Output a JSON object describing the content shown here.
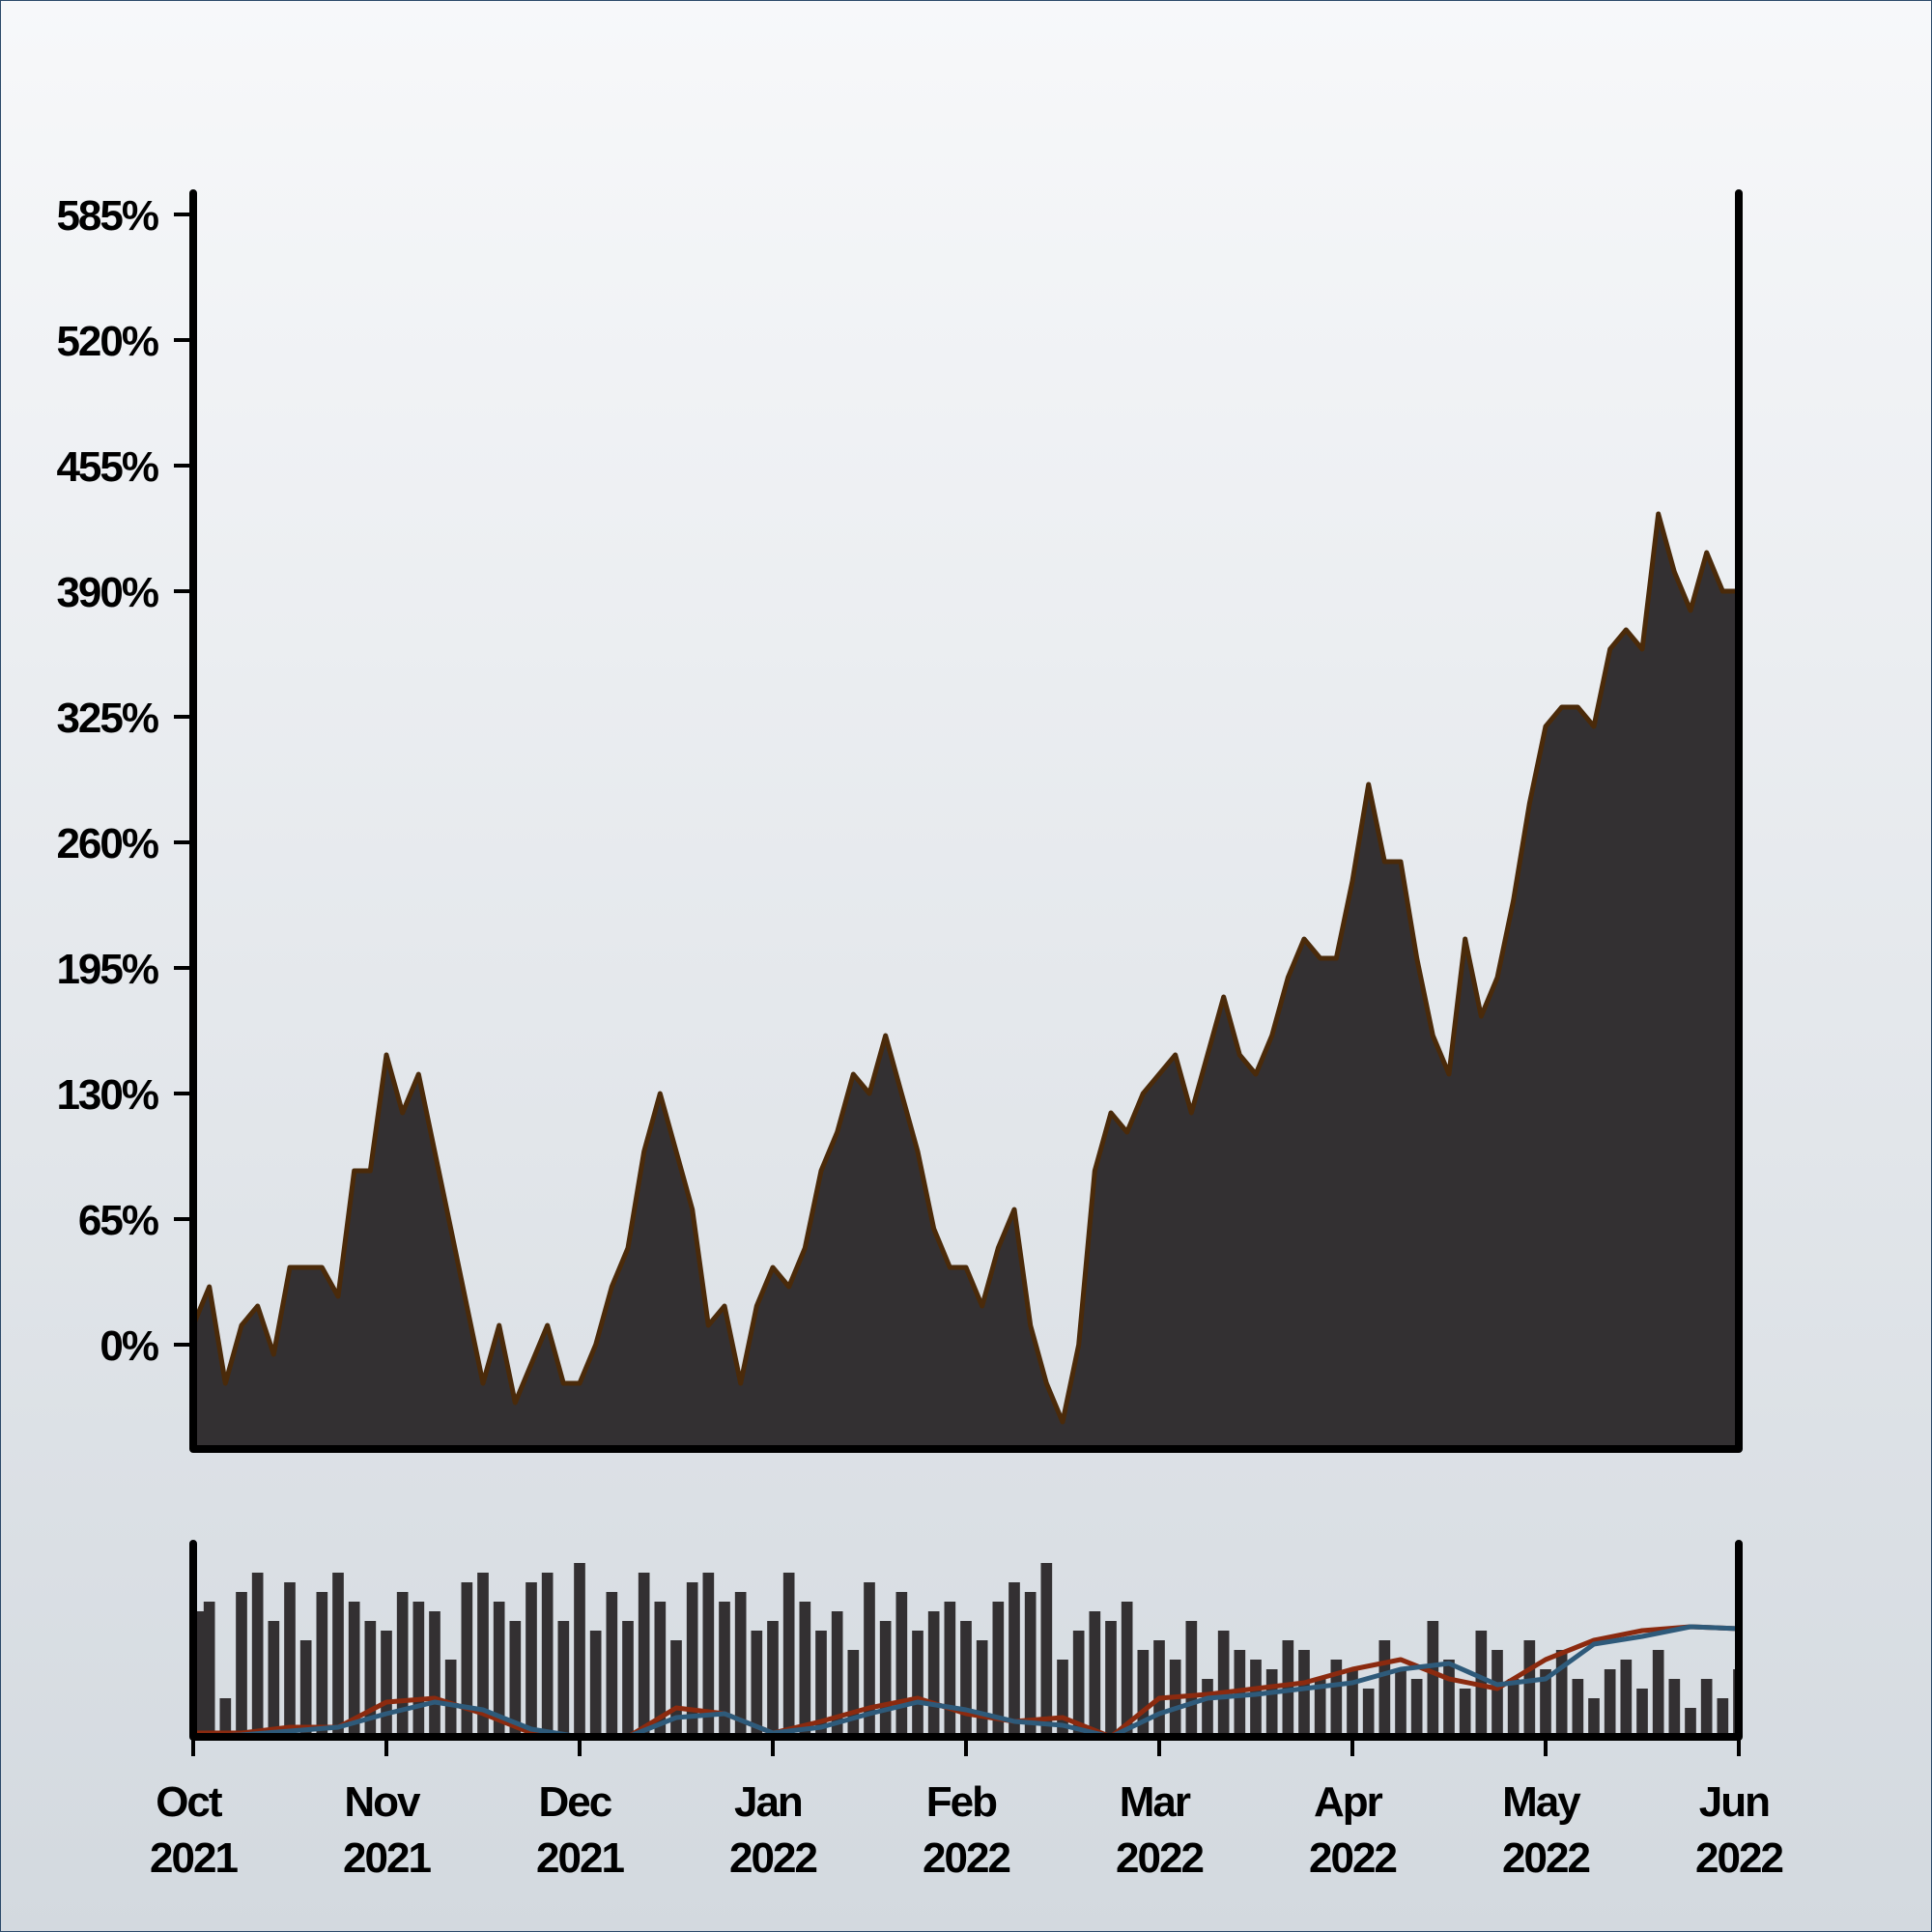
{
  "chart_data": [
    {
      "type": "area",
      "color": "#333032",
      "line_color": "#4a2a0a",
      "xlim": [
        0,
        8
      ],
      "ylim": [
        -54,
        596
      ],
      "yticks": [
        {
          "value": 0,
          "label": "0%"
        },
        {
          "value": 65,
          "label": "65%"
        },
        {
          "value": 130,
          "label": "130%"
        },
        {
          "value": 195,
          "label": "195%"
        },
        {
          "value": 260,
          "label": "260%"
        },
        {
          "value": 325,
          "label": "325%"
        },
        {
          "value": 390,
          "label": "390%"
        },
        {
          "value": 455,
          "label": "455%"
        },
        {
          "value": 520,
          "label": "520%"
        },
        {
          "value": 585,
          "label": "585%"
        }
      ],
      "values": [
        10,
        30,
        -20,
        10,
        20,
        -5,
        40,
        40,
        40,
        25,
        90,
        90,
        150,
        120,
        140,
        100,
        60,
        20,
        -20,
        10,
        -30,
        -10,
        10,
        -20,
        -20,
        0,
        30,
        50,
        100,
        130,
        100,
        70,
        10,
        20,
        -20,
        20,
        40,
        30,
        50,
        90,
        110,
        140,
        130,
        160,
        130,
        100,
        60,
        40,
        40,
        20,
        50,
        70,
        10,
        -20,
        -40,
        0,
        90,
        120,
        110,
        130,
        140,
        150,
        120,
        150,
        180,
        150,
        140,
        160,
        190,
        210,
        200,
        200,
        240,
        290,
        250,
        250,
        200,
        160,
        140,
        210,
        170,
        190,
        230,
        280,
        320,
        330,
        330,
        320,
        360,
        370,
        360,
        430,
        400,
        380,
        410,
        390,
        390
      ]
    },
    {
      "type": "bar",
      "color": "#333032",
      "xlim": [
        0,
        8
      ],
      "ylim": [
        0,
        100
      ],
      "xticks": [
        {
          "value": 0,
          "label": "Oct 2021"
        },
        {
          "value": 1,
          "label": "Nov 2021"
        },
        {
          "value": 2,
          "label": "Dec 2021"
        },
        {
          "value": 3,
          "label": "Jan 2022"
        },
        {
          "value": 4,
          "label": "Feb 2022"
        },
        {
          "value": 5,
          "label": "Mar 2022"
        },
        {
          "value": 6,
          "label": "Apr 2022"
        },
        {
          "value": 7,
          "label": "May 2022"
        },
        {
          "value": 8,
          "label": "Jun 2022"
        }
      ],
      "values": [
        65,
        70,
        20,
        75,
        85,
        60,
        80,
        50,
        75,
        85,
        70,
        60,
        55,
        75,
        70,
        65,
        40,
        80,
        85,
        70,
        60,
        80,
        85,
        60,
        90,
        55,
        75,
        60,
        85,
        70,
        50,
        80,
        85,
        70,
        75,
        55,
        60,
        85,
        70,
        55,
        65,
        45,
        80,
        60,
        75,
        55,
        65,
        70,
        60,
        50,
        70,
        80,
        75,
        90,
        40,
        55,
        65,
        60,
        70,
        45,
        50,
        40,
        60,
        30,
        55,
        45,
        40,
        35,
        50,
        45,
        30,
        40,
        35,
        25,
        50,
        35,
        30,
        60,
        40,
        25,
        55,
        45,
        30,
        50,
        35,
        45,
        30,
        20,
        35,
        40,
        25,
        45,
        30,
        15,
        30,
        20,
        35
      ],
      "series": [
        {
          "color": "#8b2a0f",
          "values": [
            2,
            2,
            5,
            5,
            18,
            20,
            12,
            2,
            0,
            0,
            15,
            12,
            2,
            8,
            15,
            20,
            12,
            8,
            10,
            0,
            20,
            22,
            25,
            28,
            35,
            40,
            30,
            25,
            40,
            50,
            55,
            57,
            56
          ]
        },
        {
          "color": "#2e5a7a",
          "values": [
            0,
            1,
            3,
            5,
            12,
            18,
            14,
            4,
            0,
            0,
            10,
            12,
            2,
            5,
            12,
            18,
            14,
            8,
            6,
            0,
            12,
            20,
            22,
            25,
            28,
            35,
            38,
            27,
            30,
            48,
            52,
            57,
            56
          ]
        }
      ]
    }
  ]
}
